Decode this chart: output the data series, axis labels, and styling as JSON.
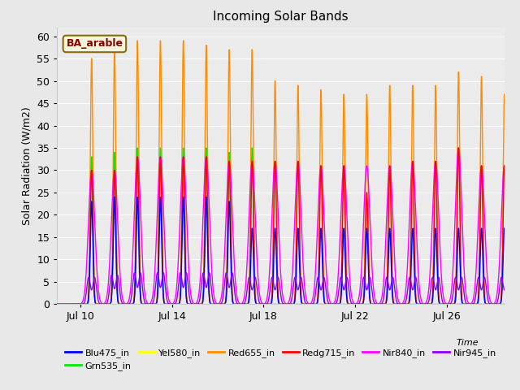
{
  "title": "Incoming Solar Bands",
  "ylabel": "Solar Radiation (W/m2)",
  "xlabel": "Time",
  "annotation": "BA_arable",
  "bg_color": "#e8e8e8",
  "plot_bg": "#ebebeb",
  "series": [
    {
      "name": "Blu475_in",
      "color": "#0000ff",
      "lw": 1.0
    },
    {
      "name": "Grn535_in",
      "color": "#00ee00",
      "lw": 1.0
    },
    {
      "name": "Yel580_in",
      "color": "#ffff00",
      "lw": 1.0
    },
    {
      "name": "Red655_in",
      "color": "#ff8c00",
      "lw": 1.0
    },
    {
      "name": "Redg715_in",
      "color": "#ff0000",
      "lw": 1.0
    },
    {
      "name": "Nir840_in",
      "color": "#ff00ff",
      "lw": 1.0
    },
    {
      "name": "Nir945_in",
      "color": "#8b00ff",
      "lw": 1.0
    }
  ],
  "ylim": [
    0,
    62
  ],
  "xlim": [
    9.0,
    28.5
  ],
  "xticks": [
    10,
    14,
    18,
    22,
    26
  ],
  "xtick_labels": [
    "Jul 10",
    "Jul 14",
    "Jul 18",
    "Jul 22",
    "Jul 26"
  ],
  "yticks": [
    0,
    5,
    10,
    15,
    20,
    25,
    30,
    35,
    40,
    45,
    50,
    55,
    60
  ],
  "peak_profiles": {
    "comment": "[Blu475, Grn535, Yel580, Red655_orange, Redg715_red, Nir840_magenta, Nir945_purple]",
    "days": [
      [
        0,
        0,
        0,
        0,
        0,
        0,
        0
      ],
      [
        23,
        33,
        0,
        55,
        30,
        30,
        6
      ],
      [
        24,
        34,
        0,
        57,
        30,
        30,
        6.5
      ],
      [
        24,
        35,
        0,
        59,
        33,
        33,
        7
      ],
      [
        24,
        35,
        0,
        59,
        33,
        33,
        7
      ],
      [
        24,
        35,
        0,
        59,
        33,
        33,
        7
      ],
      [
        24,
        35,
        0,
        58,
        33,
        33,
        7
      ],
      [
        23,
        34,
        0,
        57,
        32,
        32,
        7
      ],
      [
        17,
        35,
        0,
        57,
        32,
        32,
        6
      ],
      [
        17,
        0,
        0,
        50,
        32,
        32,
        6
      ],
      [
        17,
        0,
        0,
        49,
        32,
        32,
        6
      ],
      [
        17,
        0,
        0,
        48,
        31,
        31,
        6
      ],
      [
        17,
        0,
        0,
        47,
        31,
        31,
        6
      ],
      [
        17,
        0,
        0,
        47,
        25,
        31,
        6
      ],
      [
        17,
        0,
        0,
        49,
        31,
        31,
        6
      ],
      [
        17,
        0,
        0,
        49,
        32,
        32,
        6
      ],
      [
        17,
        0,
        0,
        49,
        32,
        32,
        6
      ],
      [
        17,
        0,
        0,
        52,
        35,
        35,
        6
      ],
      [
        17,
        0,
        0,
        51,
        31,
        31,
        6
      ],
      [
        17,
        0,
        0,
        47,
        31,
        31,
        6
      ]
    ]
  }
}
